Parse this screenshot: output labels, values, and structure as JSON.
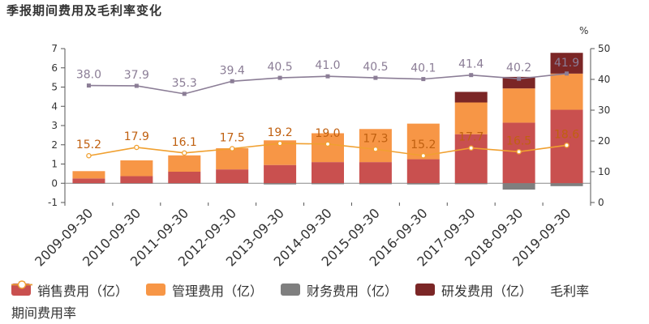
{
  "title": "季报期间费用及毛利率变化",
  "chart_data": {
    "type": "bar",
    "stacked": true,
    "categories": [
      "2009-09-30",
      "2010-09-30",
      "2011-09-30",
      "2012-09-30",
      "2013-09-30",
      "2014-09-30",
      "2015-09-30",
      "2016-09-30",
      "2017-09-30",
      "2018-09-30",
      "2019-09-30"
    ],
    "y_left": {
      "range": [
        -1,
        7
      ],
      "ticks": [
        -1,
        0,
        1,
        2,
        3,
        4,
        5,
        6,
        7
      ]
    },
    "y_right": {
      "label": "%",
      "range": [
        0,
        50
      ],
      "ticks": [
        0,
        10,
        20,
        30,
        40,
        50
      ]
    },
    "series": [
      {
        "name": "销售费用（亿）",
        "axis": "left",
        "kind": "bar",
        "color": "#c9504f",
        "values": [
          0.25,
          0.37,
          0.6,
          0.72,
          0.95,
          1.1,
          1.1,
          1.25,
          2.55,
          3.15,
          3.82
        ]
      },
      {
        "name": "管理费用（亿）",
        "axis": "left",
        "kind": "bar",
        "color": "#f79646",
        "values": [
          0.38,
          0.82,
          0.85,
          1.1,
          1.28,
          1.5,
          1.72,
          1.85,
          1.65,
          1.78,
          1.88
        ]
      },
      {
        "name": "财务费用（亿）",
        "axis": "left",
        "kind": "bar",
        "color": "#7f7f7f",
        "values": [
          -0.02,
          -0.02,
          -0.02,
          -0.02,
          -0.06,
          -0.05,
          -0.05,
          -0.06,
          -0.05,
          -0.33,
          -0.15
        ]
      },
      {
        "name": "研发费用（亿）",
        "axis": "left",
        "kind": "bar",
        "color": "#7b2626",
        "values": [
          0,
          0,
          0,
          0,
          0,
          0,
          0,
          0,
          0.55,
          0.6,
          1.08
        ]
      },
      {
        "name": "毛利率",
        "axis": "right",
        "kind": "line",
        "color": "#8b7d96",
        "label_color": "#8b7d96",
        "values": [
          38.0,
          37.9,
          35.3,
          39.4,
          40.5,
          41.0,
          40.5,
          40.1,
          41.4,
          40.2,
          41.9
        ]
      },
      {
        "name": "期间费用率",
        "axis": "right",
        "kind": "line",
        "color": "#f0a030",
        "label_color": "#c06010",
        "values": [
          15.2,
          17.9,
          16.1,
          17.5,
          19.2,
          19.0,
          17.3,
          15.2,
          17.7,
          16.5,
          18.6
        ]
      }
    ],
    "grid": false,
    "legend_position": "bottom"
  }
}
